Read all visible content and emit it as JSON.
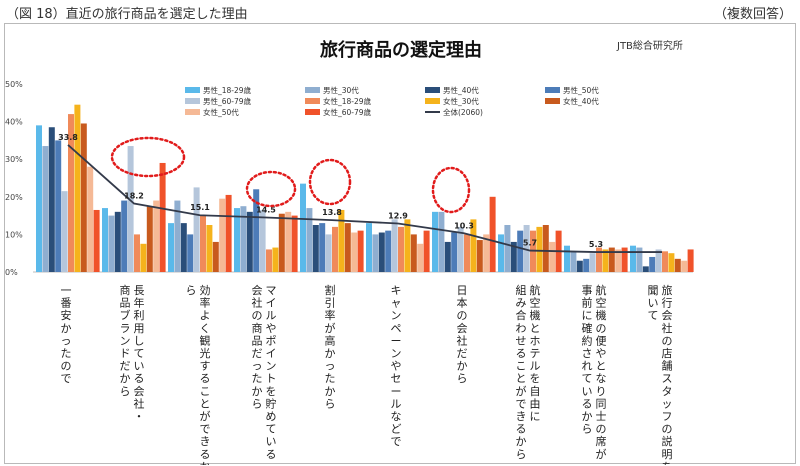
{
  "figure": {
    "caption": "（図 18）直近の旅行商品を選定した理由",
    "note": "（複数回答）"
  },
  "chart_data": {
    "type": "bar",
    "title": "旅行商品の選定理由",
    "source": "JTB総合研究所",
    "xlabel": "",
    "ylabel": "",
    "ylim": [
      0,
      50
    ],
    "yticks": [
      "0%",
      "10%",
      "20%",
      "30%",
      "40%",
      "50%"
    ],
    "grid": false,
    "legend_position": "top",
    "categories": [
      "一番安かったので",
      "長年利用している会社・商品ブランドだから",
      "効率よく観光することができるから",
      "マイルやポイントを貯めている会社の商品だったから",
      "割引率が高かったから",
      "キャンペーンやセールなどで",
      "日本の会社だから",
      "組み合わせることができるから 航空機とホテルを自由に",
      "航空機の便やとなり同士の席が事前に確約されているから",
      "旅行会社の店舗スタッフの説明を聞いて"
    ],
    "category_lines": [
      [
        "一番安かったので"
      ],
      [
        "長年利用している会社・",
        "商品ブランドだから"
      ],
      [
        "効率よく観光することができるか",
        "ら"
      ],
      [
        "マイルやポイントを貯めている",
        "会社の商品だったから"
      ],
      [
        "割引率が高かったから"
      ],
      [
        "キャンペーンやセールなどで"
      ],
      [
        "日本の会社だから"
      ],
      [
        "航空機とホテルを自由に",
        "組み合わせることができるから"
      ],
      [
        "航空機の便やとなり同士の席が",
        "事前に確約されているから"
      ],
      [
        "旅行会社の店舗スタッフの説明を",
        "聞いて"
      ]
    ],
    "series": [
      {
        "name": "男性_18-29歳",
        "color": "#5ab9ea",
        "values": [
          39,
          17,
          13,
          17,
          23.5,
          13,
          16,
          10,
          7,
          7
        ]
      },
      {
        "name": "男性_30代",
        "color": "#8faed0",
        "values": [
          33.5,
          15,
          19,
          17.5,
          17,
          10,
          16,
          12.5,
          5.5,
          6.5
        ]
      },
      {
        "name": "男性_40代",
        "color": "#2a4e79",
        "values": [
          38.5,
          16,
          13,
          16,
          12.5,
          10.5,
          8,
          8,
          3,
          1.5
        ]
      },
      {
        "name": "男性_50代",
        "color": "#4d7cb8",
        "values": [
          35,
          19,
          10,
          22,
          13,
          11,
          10.5,
          11,
          3.5,
          4
        ]
      },
      {
        "name": "男性_60-79歳",
        "color": "#b5c6db",
        "values": [
          21.5,
          33.5,
          22.5,
          16.5,
          10,
          14,
          12,
          12.5,
          5,
          6
        ]
      },
      {
        "name": "女性_18-29歳",
        "color": "#f08a5a",
        "values": [
          42,
          10,
          15,
          6,
          12,
          12,
          10,
          11,
          6.5,
          5.5
        ]
      },
      {
        "name": "女性_30代",
        "color": "#f5b31c",
        "values": [
          44.5,
          7.5,
          12.5,
          6.5,
          16.5,
          14,
          14,
          12,
          6,
          5
        ]
      },
      {
        "name": "女性_40代",
        "color": "#c85a1e",
        "values": [
          39.5,
          17.5,
          8,
          15.5,
          13,
          10,
          8.5,
          12.5,
          6.5,
          3.5
        ]
      },
      {
        "name": "女性_50代",
        "color": "#f5b996",
        "values": [
          28,
          19,
          19.5,
          16,
          10.5,
          7.5,
          10,
          8,
          6,
          3
        ]
      },
      {
        "name": "女性_60-79歳",
        "color": "#f0522a",
        "values": [
          16.5,
          29,
          20.5,
          15,
          11,
          11,
          20,
          11,
          6.5,
          6
        ]
      }
    ],
    "line_series": {
      "name": "全体(2060)",
      "color": "#333a4a",
      "values": [
        33.8,
        18.2,
        15.1,
        14.5,
        13.8,
        12.9,
        10.3,
        5.7,
        5.3,
        5.3
      ],
      "labels": [
        "33.8",
        "18.2",
        "15.1",
        "14.5",
        "13.8",
        "12.9",
        "10.3",
        "5.7",
        "5.3",
        ""
      ]
    },
    "highlights": [
      {
        "category_index": 1,
        "series": "男性_60-79歳 / 女性_60-79歳"
      },
      {
        "category_index": 3,
        "series": "男性_50代"
      },
      {
        "category_index": 4,
        "series": "男性_18-29歳"
      },
      {
        "category_index": 6,
        "series": "女性_60-79歳"
      }
    ],
    "highlight_color": "#e11b1b"
  }
}
